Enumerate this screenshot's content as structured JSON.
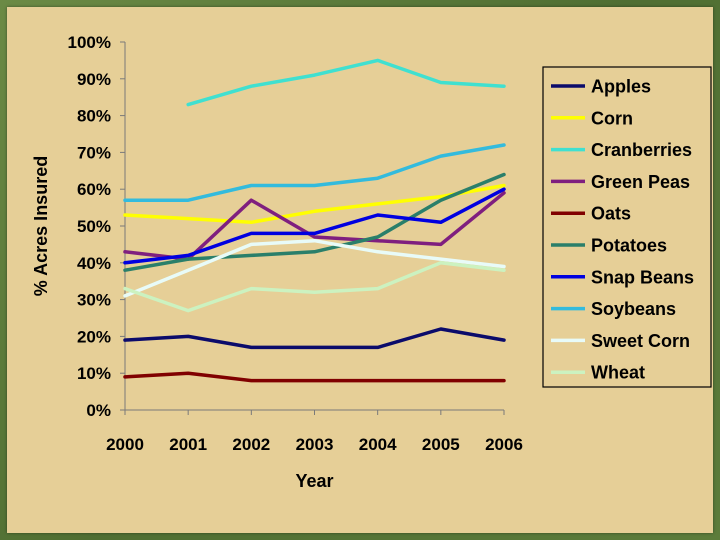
{
  "chart_data": {
    "type": "line",
    "title": "",
    "xlabel": "Year",
    "ylabel": "% Acres Insured",
    "ylim": [
      0,
      100
    ],
    "yticks": [
      "0%",
      "10%",
      "20%",
      "30%",
      "40%",
      "50%",
      "60%",
      "70%",
      "80%",
      "90%",
      "100%"
    ],
    "categories": [
      "2000",
      "2001",
      "2002",
      "2003",
      "2004",
      "2005",
      "2006"
    ],
    "legend_position": "right",
    "series": [
      {
        "name": "Apples",
        "color": "#0b0b6b",
        "values": [
          19,
          20,
          17,
          17,
          17,
          22,
          19
        ]
      },
      {
        "name": "Corn",
        "color": "#ffff00",
        "values": [
          53,
          52,
          51,
          54,
          56,
          58,
          61
        ]
      },
      {
        "name": "Cranberries",
        "color": "#40e0d0",
        "values": [
          null,
          83,
          88,
          91,
          95,
          89,
          88
        ]
      },
      {
        "name": "Green Peas",
        "color": "#7f1f7f",
        "values": [
          43,
          41,
          57,
          47,
          46,
          45,
          59
        ]
      },
      {
        "name": "Oats",
        "color": "#800000",
        "values": [
          9,
          10,
          8,
          8,
          8,
          8,
          8
        ]
      },
      {
        "name": "Potatoes",
        "color": "#2a7f6a",
        "values": [
          38,
          41,
          42,
          43,
          47,
          57,
          64
        ]
      },
      {
        "name": "Snap Beans",
        "color": "#0000e0",
        "values": [
          40,
          42,
          48,
          48,
          53,
          51,
          60
        ]
      },
      {
        "name": "Soybeans",
        "color": "#33bbdd",
        "values": [
          57,
          57,
          61,
          61,
          63,
          69,
          72
        ]
      },
      {
        "name": "Sweet Corn",
        "color": "#e8fbf8",
        "values": [
          31,
          38,
          45,
          46,
          43,
          41,
          39
        ]
      },
      {
        "name": "Wheat",
        "color": "#ccf2c0",
        "values": [
          33,
          27,
          33,
          32,
          33,
          40,
          38
        ]
      }
    ]
  }
}
